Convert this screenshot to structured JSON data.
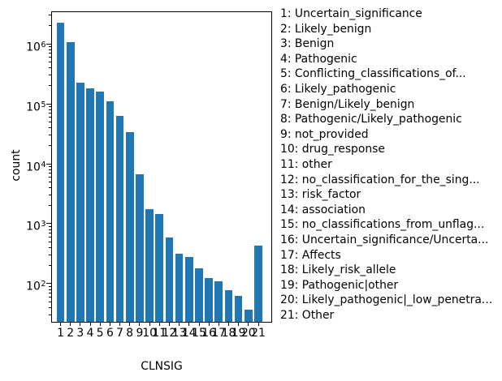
{
  "chart_data": {
    "type": "bar",
    "title": "",
    "xlabel": "CLNSIG",
    "ylabel": "count",
    "yscale": "log",
    "ylim": [
      22.4,
      3470000
    ],
    "grid": false,
    "legend_position": "right-outside",
    "bar_color": "#1f77b4",
    "categories": [
      "1",
      "2",
      "3",
      "4",
      "5",
      "6",
      "7",
      "8",
      "9",
      "10",
      "11",
      "12",
      "13",
      "14",
      "15",
      "16",
      "17",
      "18",
      "19",
      "20",
      "21"
    ],
    "values": [
      2200000,
      1020000,
      215000,
      175000,
      155000,
      105000,
      60000,
      33000,
      6500,
      1700,
      1400,
      570,
      310,
      270,
      175,
      120,
      105,
      76,
      61,
      36,
      420
    ],
    "y_tick_exponents": [
      2,
      3,
      4,
      5,
      6
    ],
    "legend_entries": [
      "1: Uncertain_significance",
      "2: Likely_benign",
      "3: Benign",
      "4: Pathogenic",
      "5: Conflicting_classifications_of...",
      "6: Likely_pathogenic",
      "7: Benign/Likely_benign",
      "8: Pathogenic/Likely_pathogenic",
      "9: not_provided",
      "10: drug_response",
      "11: other",
      "12: no_classification_for_the_sing...",
      "13: risk_factor",
      "14: association",
      "15: no_classifications_from_unflag...",
      "16: Uncertain_significance/Uncerta...",
      "17: Affects",
      "18: Likely_risk_allele",
      "19: Pathogenic|other",
      "20: Likely_pathogenic|_low_penetra...",
      "21: Other"
    ]
  }
}
